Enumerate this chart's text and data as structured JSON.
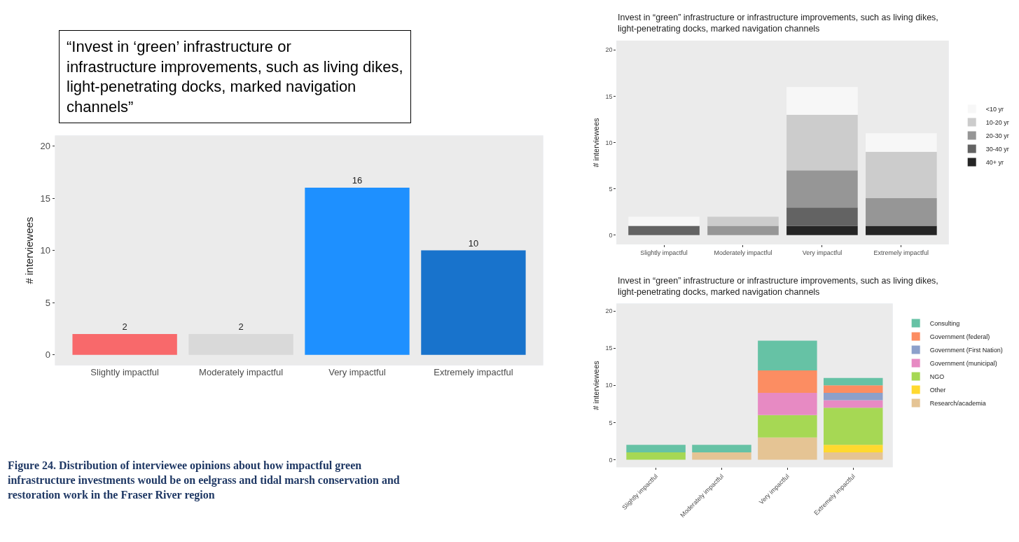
{
  "chart_data": [
    {
      "type": "bar",
      "title": "“Invest in ‘green’ infrastructure or infrastructure improvements, such as living dikes, light-penetrating docks, marked navigation channels”",
      "ylabel": "# interviewees",
      "categories": [
        "Slightly impactful",
        "Moderately impactful",
        "Very impactful",
        "Extremely impactful"
      ],
      "values": [
        2,
        2,
        16,
        10
      ],
      "colors": [
        "#f8696b",
        "#d9d9d9",
        "#1e90ff",
        "#1873cc"
      ],
      "data_labels": true,
      "ylim": [
        -1,
        21
      ],
      "yticks": [
        0,
        5,
        10,
        15,
        20
      ],
      "grid": false,
      "legend": false,
      "annotations": [
        "Figure 24. Distribution of interviewee opinions about how impactful green infrastructure investments would be on eelgrass and tidal marsh conservation and restoration work in the Fraser River region"
      ]
    },
    {
      "type": "bar",
      "stacked": true,
      "title": "Invest in “green” infrastructure or infrastructure improvements, such as living dikes, light-penetrating docks, marked navigation channels",
      "ylabel": "# interviewees",
      "categories": [
        "Slightly impactful",
        "Moderately impactful",
        "Very impactful",
        "Extremely impactful"
      ],
      "ylim": [
        -1,
        21
      ],
      "yticks": [
        0,
        5,
        10,
        15,
        20
      ],
      "grid": false,
      "legend": "right",
      "series": [
        {
          "name": "40+ yr",
          "color": "#252525",
          "values": [
            0,
            0,
            1,
            1
          ]
        },
        {
          "name": "30-40 yr",
          "color": "#636363",
          "values": [
            1,
            0,
            2,
            0
          ]
        },
        {
          "name": "20-30 yr",
          "color": "#969696",
          "values": [
            0,
            1,
            4,
            3
          ]
        },
        {
          "name": "10-20 yr",
          "color": "#cccccc",
          "values": [
            0,
            1,
            6,
            5
          ]
        },
        {
          "name": "<10 yr",
          "color": "#f7f7f7",
          "values": [
            1,
            0,
            3,
            2
          ]
        }
      ]
    },
    {
      "type": "bar",
      "stacked": true,
      "title": "Invest in “green” infrastructure or infrastructure improvements, such as living dikes, light-penetrating docks, marked navigation channels",
      "ylabel": "# interviewees",
      "categories": [
        "Slightly impactful",
        "Moderately impactful",
        "Very impactful",
        "Extremely impactful"
      ],
      "ylim": [
        -1,
        21
      ],
      "yticks": [
        0,
        5,
        10,
        15,
        20
      ],
      "grid": false,
      "legend": "right",
      "series": [
        {
          "name": "Research/academia",
          "color": "#e5c494",
          "values": [
            0,
            1,
            3,
            1
          ]
        },
        {
          "name": "Other",
          "color": "#ffd92f",
          "values": [
            0,
            0,
            0,
            1
          ]
        },
        {
          "name": "NGO",
          "color": "#a6d854",
          "values": [
            1,
            0,
            3,
            5
          ]
        },
        {
          "name": "Government (municipal)",
          "color": "#e78ac3",
          "values": [
            0,
            0,
            3,
            1
          ]
        },
        {
          "name": "Government (First Nation)",
          "color": "#8da0cb",
          "values": [
            0,
            0,
            0,
            1
          ]
        },
        {
          "name": "Government (federal)",
          "color": "#fc8d62",
          "values": [
            0,
            0,
            3,
            1
          ]
        },
        {
          "name": "Consulting",
          "color": "#66c2a5",
          "values": [
            1,
            1,
            4,
            1
          ]
        }
      ]
    }
  ]
}
